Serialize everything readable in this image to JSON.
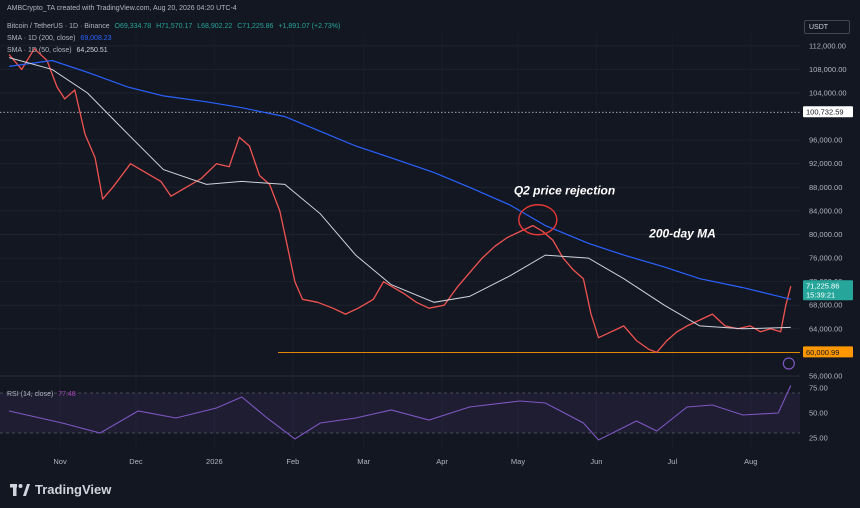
{
  "header": {
    "line1": "AMBCrypto_TA created with TradingView.com, Aug 20, 2026 04:20 UTC-4",
    "symbol": "Bitcoin / TetherUS · 1D · Binance",
    "open": "O69,334.78",
    "high": "H71,570.17",
    "low": "L68,902.22",
    "close": "C71,225.86",
    "change": "+1,891.07 (+2.73%)",
    "ma200_label": "SMA · 1D (200, close)",
    "ma200_value": "69,008.23",
    "ma50_label": "SMA · 1D (50, close)",
    "ma50_value": "64,250.51"
  },
  "currency": "USDT",
  "brand": "TradingView",
  "colors": {
    "background": "#131722",
    "up": "#26a69a",
    "down": "#ef5350",
    "ma200": "#2962ff",
    "ma50": "#d1d4dc",
    "rsi": "#7e57c2",
    "support": "#ff9800",
    "annotation_circle": "#e53935"
  },
  "chart_data": {
    "type": "line",
    "title": "Bitcoin / TetherUS · 1D · Binance",
    "ylim": [
      56000,
      114000
    ],
    "y_ticks": [
      "112,000.00",
      "108,000.00",
      "104,000.00",
      "96,000.00",
      "92,000.00",
      "88,000.00",
      "84,000.00",
      "80,000.00",
      "76,000.00",
      "72,000.00",
      "68,000.00",
      "64,000.00",
      "56,000.00"
    ],
    "x_ticks": [
      "Nov",
      "Dec",
      "2026",
      "Feb",
      "Mar",
      "Apr",
      "May",
      "Jun",
      "Jul",
      "Aug"
    ],
    "price_labels": [
      {
        "value": 100732.59,
        "text": "100,732.59",
        "kind": "level"
      },
      {
        "value": 71225.86,
        "text": "71,225.86",
        "sub": "15:39:21",
        "kind": "last"
      },
      {
        "value": 60000.99,
        "text": "60,000.99",
        "kind": "support"
      }
    ],
    "horizontal_lines": [
      {
        "value": 100732.59,
        "style": "dotted"
      },
      {
        "value": 60000.99,
        "style": "solid"
      }
    ],
    "series": [
      {
        "name": "Price",
        "points": [
          [
            "Oct 15",
            110500
          ],
          [
            "Oct 20",
            108000
          ],
          [
            "Oct 25",
            111500
          ],
          [
            "Oct 30",
            109500
          ],
          [
            "Nov 3",
            105000
          ],
          [
            "Nov 6",
            103000
          ],
          [
            "Nov 10",
            104500
          ],
          [
            "Nov 14",
            97000
          ],
          [
            "Nov 18",
            93000
          ],
          [
            "Nov 21",
            86000
          ],
          [
            "Nov 25",
            88000
          ],
          [
            "Dec 2",
            92000
          ],
          [
            "Dec 8",
            90500
          ],
          [
            "Dec 14",
            89000
          ],
          [
            "Dec 18",
            86500
          ],
          [
            "Dec 24",
            88000
          ],
          [
            "Dec 30",
            89500
          ],
          [
            "Jan 5",
            92000
          ],
          [
            "Jan 10",
            91500
          ],
          [
            "Jan 14",
            96500
          ],
          [
            "Jan 18",
            95000
          ],
          [
            "Jan 22",
            90000
          ],
          [
            "Jan 26",
            88500
          ],
          [
            "Jan 30",
            84000
          ],
          [
            "Feb 2",
            78000
          ],
          [
            "Feb 5",
            72000
          ],
          [
            "Feb 8",
            69000
          ],
          [
            "Feb 14",
            68500
          ],
          [
            "Feb 20",
            67500
          ],
          [
            "Feb 25",
            66500
          ],
          [
            "Mar 2",
            67500
          ],
          [
            "Mar 8",
            69000
          ],
          [
            "Mar 12",
            72000
          ],
          [
            "Mar 16",
            71000
          ],
          [
            "Mar 20",
            70000
          ],
          [
            "Mar 25",
            68500
          ],
          [
            "Mar 30",
            67500
          ],
          [
            "Apr 5",
            68000
          ],
          [
            "Apr 10",
            71000
          ],
          [
            "Apr 15",
            73500
          ],
          [
            "Apr 20",
            76000
          ],
          [
            "Apr 25",
            78000
          ],
          [
            "Apr 30",
            79500
          ],
          [
            "May 5",
            80500
          ],
          [
            "May 10",
            81500
          ],
          [
            "May 14",
            80500
          ],
          [
            "May 18",
            79000
          ],
          [
            "May 22",
            76000
          ],
          [
            "May 26",
            74000
          ],
          [
            "May 30",
            72500
          ],
          [
            "Jun 2",
            66500
          ],
          [
            "Jun 5",
            62500
          ],
          [
            "Jun 10",
            63500
          ],
          [
            "Jun 15",
            64500
          ],
          [
            "Jun 20",
            62000
          ],
          [
            "Jun 25",
            60500
          ],
          [
            "Jun 28",
            60000
          ],
          [
            "Jul 2",
            62000
          ],
          [
            "Jul 6",
            63500
          ],
          [
            "Jul 10",
            64500
          ],
          [
            "Jul 15",
            65500
          ],
          [
            "Jul 20",
            66500
          ],
          [
            "Jul 25",
            64500
          ],
          [
            "Jul 30",
            64000
          ],
          [
            "Aug 4",
            64500
          ],
          [
            "Aug 8",
            63500
          ],
          [
            "Aug 12",
            64000
          ],
          [
            "Aug 16",
            63500
          ],
          [
            "Aug 18",
            68000
          ],
          [
            "Aug 20",
            71225.86
          ]
        ]
      },
      {
        "name": "SMA · 1D (200, close)",
        "points": [
          [
            "Oct 15",
            108500
          ],
          [
            "Nov 1",
            109500
          ],
          [
            "Nov 15",
            107500
          ],
          [
            "Dec 1",
            105000
          ],
          [
            "Dec 15",
            103500
          ],
          [
            "Jan 1",
            102500
          ],
          [
            "Jan 15",
            101500
          ],
          [
            "Feb 1",
            100000
          ],
          [
            "Feb 15",
            97500
          ],
          [
            "Mar 1",
            95000
          ],
          [
            "Mar 15",
            93000
          ],
          [
            "Apr 1",
            90500
          ],
          [
            "Apr 15",
            88000
          ],
          [
            "May 1",
            85000
          ],
          [
            "May 15",
            81500
          ],
          [
            "Jun 1",
            78500
          ],
          [
            "Jun 15",
            76500
          ],
          [
            "Jul 1",
            74500
          ],
          [
            "Jul 15",
            72500
          ],
          [
            "Aug 1",
            71000
          ],
          [
            "Aug 20",
            69008.23
          ]
        ]
      },
      {
        "name": "SMA · 1D (50, close)",
        "points": [
          [
            "Oct 15",
            110000
          ],
          [
            "Nov 1",
            108000
          ],
          [
            "Nov 15",
            104000
          ],
          [
            "Dec 1",
            97000
          ],
          [
            "Dec 15",
            91000
          ],
          [
            "Jan 1",
            88500
          ],
          [
            "Jan 15",
            89000
          ],
          [
            "Feb 1",
            88500
          ],
          [
            "Feb 15",
            83500
          ],
          [
            "Mar 1",
            76500
          ],
          [
            "Mar 15",
            71500
          ],
          [
            "Apr 1",
            68500
          ],
          [
            "Apr 15",
            69500
          ],
          [
            "May 1",
            73000
          ],
          [
            "May 15",
            76500
          ],
          [
            "Jun 1",
            76000
          ],
          [
            "Jun 15",
            72500
          ],
          [
            "Jul 1",
            68000
          ],
          [
            "Jul 15",
            64500
          ],
          [
            "Aug 1",
            64000
          ],
          [
            "Aug 20",
            64250.51
          ]
        ]
      }
    ],
    "annotations": [
      {
        "text": "Q2 price rejection",
        "date": "May 12",
        "value": 82500
      },
      {
        "text": "200-day MA",
        "date": "Jun 25",
        "value": 79500
      }
    ],
    "rsi": {
      "label": "RSI (14, close)",
      "value": "77.48",
      "ylim": [
        15,
        85
      ],
      "ticks": [
        "75.00",
        "50.00",
        "25.00"
      ],
      "bands": [
        70,
        30
      ],
      "points": [
        [
          "Oct 15",
          52
        ],
        [
          "Nov 5",
          40
        ],
        [
          "Nov 20",
          30
        ],
        [
          "Dec 5",
          52
        ],
        [
          "Dec 20",
          45
        ],
        [
          "Jan 5",
          55
        ],
        [
          "Jan 15",
          66
        ],
        [
          "Jan 25",
          45
        ],
        [
          "Feb 5",
          24
        ],
        [
          "Feb 15",
          40
        ],
        [
          "Mar 1",
          45
        ],
        [
          "Mar 15",
          53
        ],
        [
          "Mar 30",
          43
        ],
        [
          "Apr 15",
          56
        ],
        [
          "May 5",
          62
        ],
        [
          "May 15",
          60
        ],
        [
          "May 30",
          40
        ],
        [
          "Jun 5",
          23
        ],
        [
          "Jun 20",
          42
        ],
        [
          "Jun 28",
          32
        ],
        [
          "Jul 10",
          56
        ],
        [
          "Jul 20",
          58
        ],
        [
          "Aug 1",
          48
        ],
        [
          "Aug 15",
          50
        ],
        [
          "Aug 20",
          77.48
        ]
      ]
    }
  }
}
